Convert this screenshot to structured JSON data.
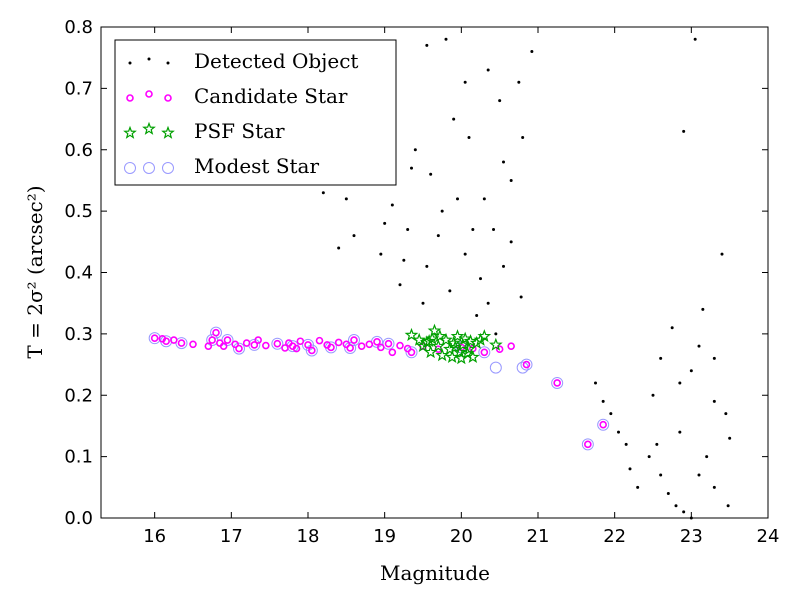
{
  "chart_data": {
    "type": "scatter",
    "title": "",
    "xlabel": "Magnitude",
    "ylabel": "T = 2σ² (arcsec²)",
    "xlim": [
      15.3,
      24.0
    ],
    "ylim": [
      0.0,
      0.8
    ],
    "xticks": [
      16,
      17,
      18,
      19,
      20,
      21,
      22,
      23,
      24
    ],
    "yticks": [
      0.0,
      0.1,
      0.2,
      0.3,
      0.4,
      0.5,
      0.6,
      0.7,
      0.8
    ],
    "grid": false,
    "legend_position": "top-left",
    "series": [
      {
        "name": "Detected Object",
        "marker": "dot",
        "color": "#000000",
        "points": [
          [
            19.55,
            0.77
          ],
          [
            19.4,
            0.6
          ],
          [
            19.6,
            0.56
          ],
          [
            19.9,
            0.65
          ],
          [
            20.05,
            0.71
          ],
          [
            19.8,
            0.78
          ],
          [
            19.05,
            0.64
          ],
          [
            18.3,
            0.62
          ],
          [
            18.85,
            0.59
          ],
          [
            18.5,
            0.52
          ],
          [
            19.1,
            0.51
          ],
          [
            19.35,
            0.57
          ],
          [
            18.2,
            0.53
          ],
          [
            19.75,
            0.5
          ],
          [
            19.95,
            0.52
          ],
          [
            20.15,
            0.47
          ],
          [
            20.3,
            0.52
          ],
          [
            20.1,
            0.62
          ],
          [
            20.35,
            0.73
          ],
          [
            20.5,
            0.68
          ],
          [
            20.55,
            0.58
          ],
          [
            20.42,
            0.47
          ],
          [
            20.65,
            0.55
          ],
          [
            20.8,
            0.62
          ],
          [
            20.92,
            0.76
          ],
          [
            20.75,
            0.71
          ],
          [
            19.5,
            0.35
          ],
          [
            19.2,
            0.38
          ],
          [
            19.55,
            0.41
          ],
          [
            19.85,
            0.37
          ],
          [
            20.05,
            0.43
          ],
          [
            20.25,
            0.39
          ],
          [
            20.55,
            0.41
          ],
          [
            20.35,
            0.35
          ],
          [
            20.2,
            0.33
          ],
          [
            20.65,
            0.45
          ],
          [
            20.78,
            0.36
          ],
          [
            19.25,
            0.42
          ],
          [
            18.95,
            0.43
          ],
          [
            20.45,
            0.3
          ],
          [
            18.4,
            0.44
          ],
          [
            18.6,
            0.46
          ],
          [
            19.0,
            0.48
          ],
          [
            19.7,
            0.46
          ],
          [
            19.3,
            0.47
          ],
          [
            23.05,
            0.78
          ],
          [
            22.9,
            0.63
          ],
          [
            23.4,
            0.43
          ],
          [
            23.15,
            0.34
          ],
          [
            23.3,
            0.26
          ],
          [
            23.3,
            0.19
          ],
          [
            23.45,
            0.17
          ],
          [
            23.5,
            0.13
          ],
          [
            23.48,
            0.02
          ],
          [
            23.2,
            0.1
          ],
          [
            23.3,
            0.05
          ],
          [
            22.8,
            0.02
          ],
          [
            22.9,
            0.01
          ],
          [
            23.0,
            0.0
          ],
          [
            22.7,
            0.04
          ],
          [
            22.6,
            0.07
          ],
          [
            22.55,
            0.12
          ],
          [
            22.2,
            0.08
          ],
          [
            22.3,
            0.05
          ],
          [
            21.95,
            0.17
          ],
          [
            21.85,
            0.19
          ],
          [
            21.75,
            0.22
          ],
          [
            22.15,
            0.12
          ],
          [
            22.85,
            0.14
          ],
          [
            23.1,
            0.07
          ],
          [
            22.45,
            0.1
          ],
          [
            22.05,
            0.14
          ],
          [
            22.75,
            0.31
          ],
          [
            22.6,
            0.26
          ],
          [
            22.85,
            0.22
          ],
          [
            22.5,
            0.2
          ],
          [
            23.0,
            0.24
          ],
          [
            23.1,
            0.28
          ]
        ]
      },
      {
        "name": "Candidate Star",
        "marker": "circle-small",
        "color": "#ff00ff",
        "points": [
          [
            16.0,
            0.293
          ],
          [
            16.1,
            0.292
          ],
          [
            16.15,
            0.288
          ],
          [
            16.25,
            0.29
          ],
          [
            16.35,
            0.285
          ],
          [
            16.5,
            0.283
          ],
          [
            16.7,
            0.28
          ],
          [
            16.75,
            0.29
          ],
          [
            16.8,
            0.302
          ],
          [
            16.85,
            0.285
          ],
          [
            16.9,
            0.28
          ],
          [
            16.95,
            0.29
          ],
          [
            17.05,
            0.283
          ],
          [
            17.1,
            0.276
          ],
          [
            17.2,
            0.285
          ],
          [
            17.3,
            0.282
          ],
          [
            17.35,
            0.29
          ],
          [
            17.45,
            0.281
          ],
          [
            17.6,
            0.284
          ],
          [
            17.7,
            0.277
          ],
          [
            17.75,
            0.285
          ],
          [
            17.8,
            0.28
          ],
          [
            17.85,
            0.276
          ],
          [
            17.9,
            0.288
          ],
          [
            18.0,
            0.282
          ],
          [
            18.05,
            0.273
          ],
          [
            18.15,
            0.289
          ],
          [
            18.25,
            0.282
          ],
          [
            18.3,
            0.278
          ],
          [
            18.4,
            0.286
          ],
          [
            18.5,
            0.283
          ],
          [
            18.55,
            0.277
          ],
          [
            18.6,
            0.29
          ],
          [
            18.7,
            0.28
          ],
          [
            18.8,
            0.283
          ],
          [
            18.9,
            0.287
          ],
          [
            18.95,
            0.278
          ],
          [
            19.05,
            0.284
          ],
          [
            19.1,
            0.27
          ],
          [
            19.2,
            0.281
          ],
          [
            19.3,
            0.276
          ],
          [
            19.35,
            0.27
          ],
          [
            19.5,
            0.28
          ],
          [
            19.7,
            0.275
          ],
          [
            20.0,
            0.278
          ],
          [
            20.15,
            0.276
          ],
          [
            20.3,
            0.27
          ],
          [
            20.5,
            0.275
          ],
          [
            20.65,
            0.28
          ],
          [
            20.85,
            0.25
          ],
          [
            21.25,
            0.22
          ],
          [
            21.65,
            0.12
          ],
          [
            21.85,
            0.152
          ]
        ]
      },
      {
        "name": "PSF Star",
        "marker": "star",
        "color": "#00a000",
        "points": [
          [
            19.35,
            0.298
          ],
          [
            19.45,
            0.29
          ],
          [
            19.5,
            0.28
          ],
          [
            19.55,
            0.286
          ],
          [
            19.6,
            0.27
          ],
          [
            19.62,
            0.292
          ],
          [
            19.65,
            0.305
          ],
          [
            19.7,
            0.28
          ],
          [
            19.75,
            0.265
          ],
          [
            19.8,
            0.29
          ],
          [
            19.85,
            0.275
          ],
          [
            19.88,
            0.262
          ],
          [
            19.9,
            0.285
          ],
          [
            19.95,
            0.296
          ],
          [
            19.98,
            0.27
          ],
          [
            20.0,
            0.26
          ],
          [
            20.02,
            0.282
          ],
          [
            20.05,
            0.292
          ],
          [
            20.08,
            0.268
          ],
          [
            20.1,
            0.275
          ],
          [
            20.15,
            0.262
          ],
          [
            20.2,
            0.285
          ],
          [
            20.25,
            0.29
          ],
          [
            20.3,
            0.296
          ],
          [
            20.45,
            0.282
          ],
          [
            19.72,
            0.296
          ],
          [
            19.92,
            0.278
          ],
          [
            19.58,
            0.288
          ],
          [
            20.12,
            0.288
          ]
        ]
      },
      {
        "name": "Modest Star",
        "marker": "circle-open",
        "color": "#9999ff",
        "points": [
          [
            16.0,
            0.293
          ],
          [
            16.15,
            0.288
          ],
          [
            16.35,
            0.285
          ],
          [
            16.75,
            0.29
          ],
          [
            16.8,
            0.302
          ],
          [
            16.95,
            0.29
          ],
          [
            17.1,
            0.276
          ],
          [
            17.3,
            0.282
          ],
          [
            17.6,
            0.284
          ],
          [
            17.8,
            0.28
          ],
          [
            18.0,
            0.282
          ],
          [
            18.05,
            0.273
          ],
          [
            18.3,
            0.278
          ],
          [
            18.55,
            0.277
          ],
          [
            18.6,
            0.29
          ],
          [
            18.9,
            0.287
          ],
          [
            19.05,
            0.284
          ],
          [
            19.35,
            0.27
          ],
          [
            20.0,
            0.278
          ],
          [
            20.3,
            0.27
          ],
          [
            20.45,
            0.245
          ],
          [
            20.8,
            0.245
          ],
          [
            20.85,
            0.25
          ],
          [
            21.25,
            0.22
          ],
          [
            21.65,
            0.12
          ],
          [
            21.85,
            0.152
          ]
        ]
      }
    ]
  }
}
